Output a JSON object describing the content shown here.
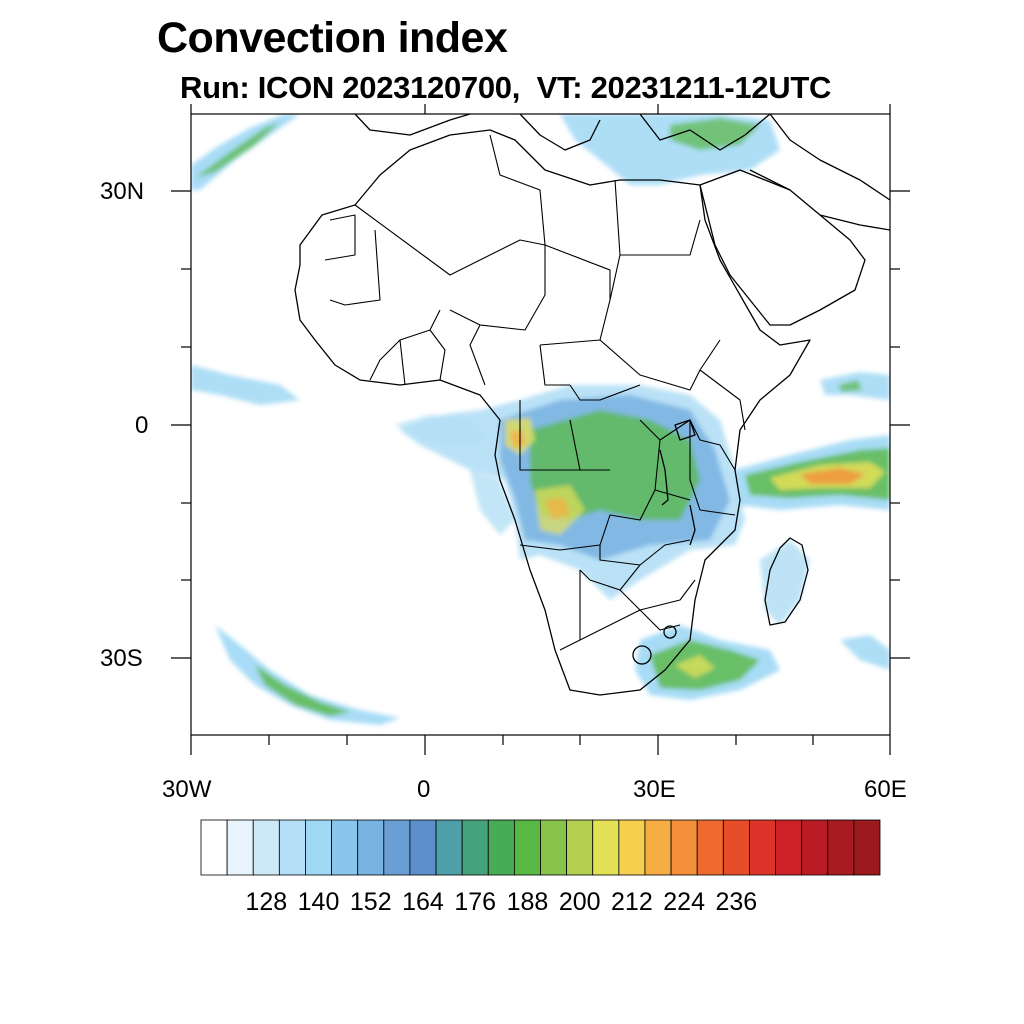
{
  "title": "Convection index",
  "subtitle": "Run: ICON 2023120700,  VT: 20231211-12UTC",
  "axes": {
    "lon_ticks": [
      "30W",
      "0",
      "30E",
      "60E"
    ],
    "lat_ticks": [
      "30N",
      "0",
      "30S"
    ]
  },
  "colorbar": {
    "labels": [
      "128",
      "140",
      "152",
      "164",
      "176",
      "188",
      "200",
      "212",
      "224",
      "236"
    ],
    "colors": [
      "#ffffff",
      "#e8f4fb",
      "#cde8f7",
      "#b3def5",
      "#9fd8f5",
      "#8ac6ec",
      "#78b3e2",
      "#6a9fd6",
      "#5c8fcb",
      "#4e9fa8",
      "#46a27d",
      "#48ac55",
      "#58b844",
      "#88c34b",
      "#b3d051",
      "#e5e157",
      "#f6cf4e",
      "#f6ad43",
      "#f48f3a",
      "#ef6a2e",
      "#e74d29",
      "#de3328",
      "#cd2127",
      "#b91c24",
      "#a71b21",
      "#9b1a1e"
    ]
  },
  "map_data": {
    "type": "filled-contour",
    "field": "Convection index",
    "model": "ICON",
    "lon_range": [
      -30,
      60
    ],
    "lat_range": [
      -40,
      40
    ],
    "levels_min": 122,
    "levels_step": 6
  }
}
